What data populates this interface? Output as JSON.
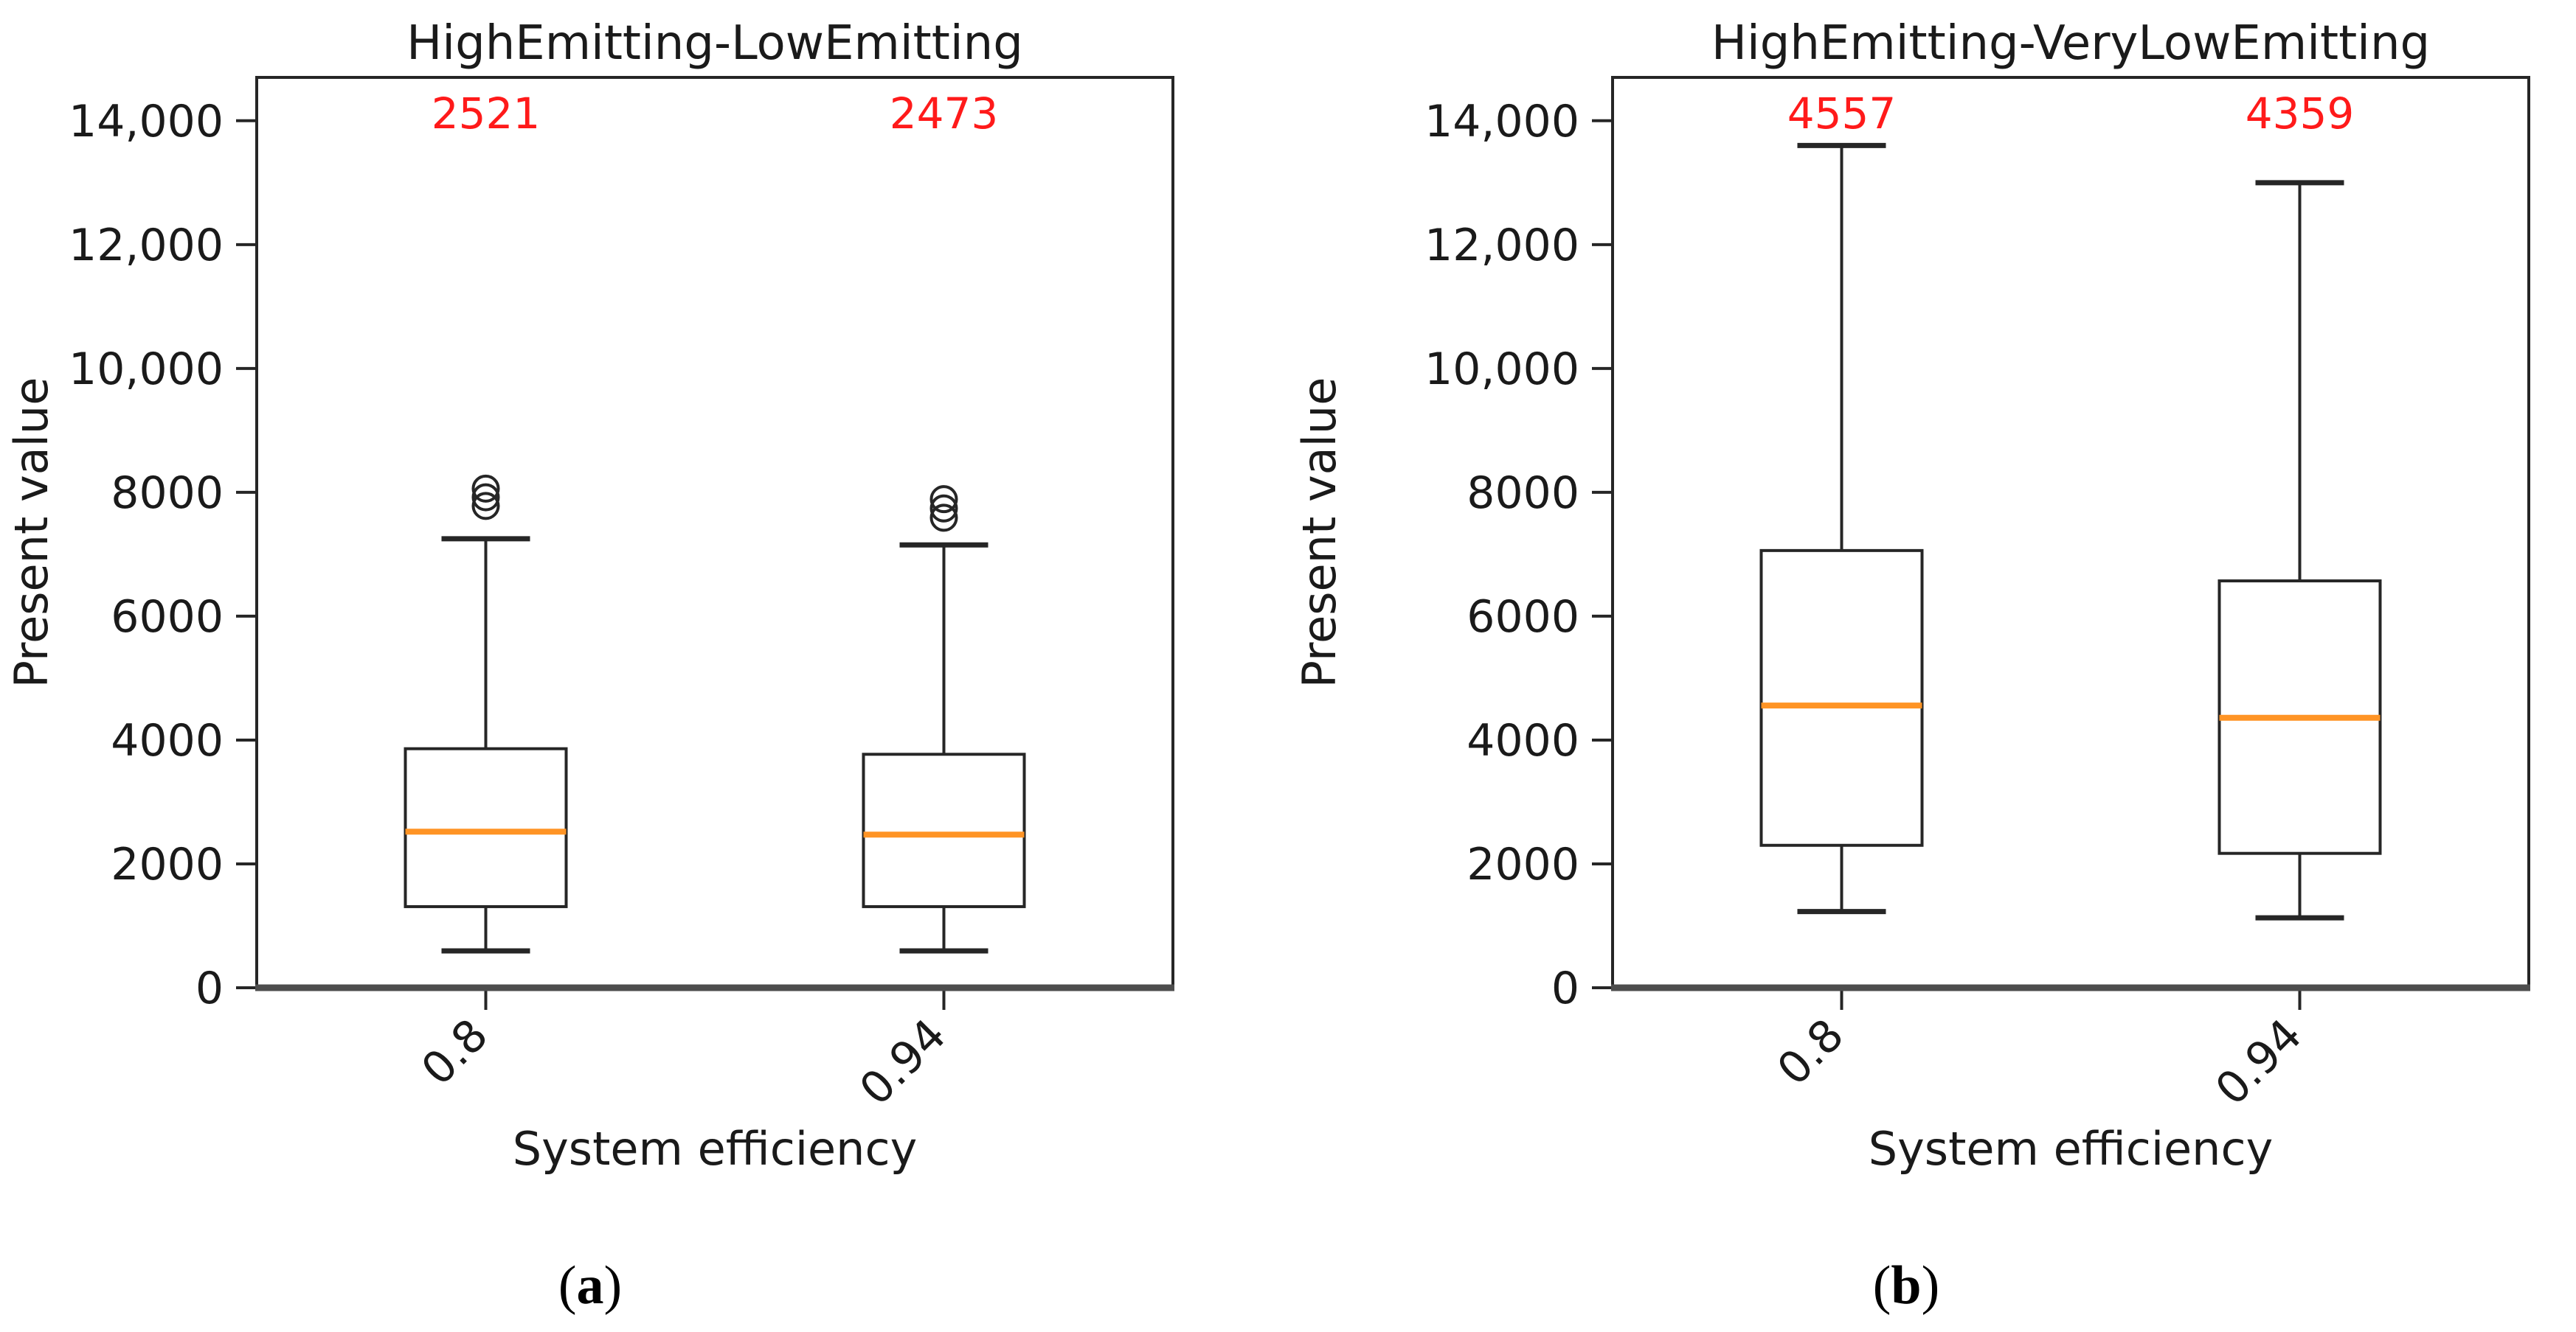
{
  "colors": {
    "text": "#1a1a1a",
    "axis": "#262626",
    "bottom_spine": "#4d4d4d",
    "box_stroke": "#262626",
    "median": "#ff9425",
    "annotation": "#ff1a1a",
    "background": "#ffffff"
  },
  "figures": [
    {
      "caption": {
        "open": "(",
        "letter": "a",
        "close": ")"
      }
    },
    {
      "caption": {
        "open": "(",
        "letter": "b",
        "close": ")"
      }
    }
  ],
  "chart_data": [
    {
      "type": "box",
      "title": "HighEmitting-LowEmitting",
      "xlabel": "System efficiency",
      "ylabel": "Present value",
      "categories": [
        "0.8",
        "0.94"
      ],
      "ylim": [
        0,
        14700
      ],
      "grid": false,
      "legend": null,
      "y_ticks": [
        0,
        2000,
        4000,
        6000,
        8000,
        10000,
        12000,
        14000
      ],
      "y_tick_labels": [
        "0",
        "2000",
        "4000",
        "6000",
        "8000",
        "10,000",
        "12,000",
        "14,000"
      ],
      "series": [
        {
          "category": "0.8",
          "annotation": "2521",
          "whisker_low": 595,
          "q1": 1310,
          "median": 2521,
          "q3": 3860,
          "whisker_high": 7250,
          "outliers": [
            7780,
            7920,
            8060
          ]
        },
        {
          "category": "0.94",
          "annotation": "2473",
          "whisker_low": 595,
          "q1": 1310,
          "median": 2473,
          "q3": 3770,
          "whisker_high": 7150,
          "outliers": [
            7590,
            7740,
            7890
          ]
        }
      ]
    },
    {
      "type": "box",
      "title": "HighEmitting-VeryLowEmitting",
      "xlabel": "System efficiency",
      "ylabel": "Present value",
      "categories": [
        "0.8",
        "0.94"
      ],
      "ylim": [
        0,
        14700
      ],
      "grid": false,
      "legend": null,
      "y_ticks": [
        0,
        2000,
        4000,
        6000,
        8000,
        10000,
        12000,
        14000
      ],
      "y_tick_labels": [
        "0",
        "2000",
        "4000",
        "6000",
        "8000",
        "10,000",
        "12,000",
        "14,000"
      ],
      "series": [
        {
          "category": "0.8",
          "annotation": "4557",
          "whisker_low": 1230,
          "q1": 2300,
          "median": 4557,
          "q3": 7060,
          "whisker_high": 13600,
          "outliers": []
        },
        {
          "category": "0.94",
          "annotation": "4359",
          "whisker_low": 1130,
          "q1": 2170,
          "median": 4359,
          "q3": 6570,
          "whisker_high": 13000,
          "outliers": []
        }
      ]
    }
  ]
}
